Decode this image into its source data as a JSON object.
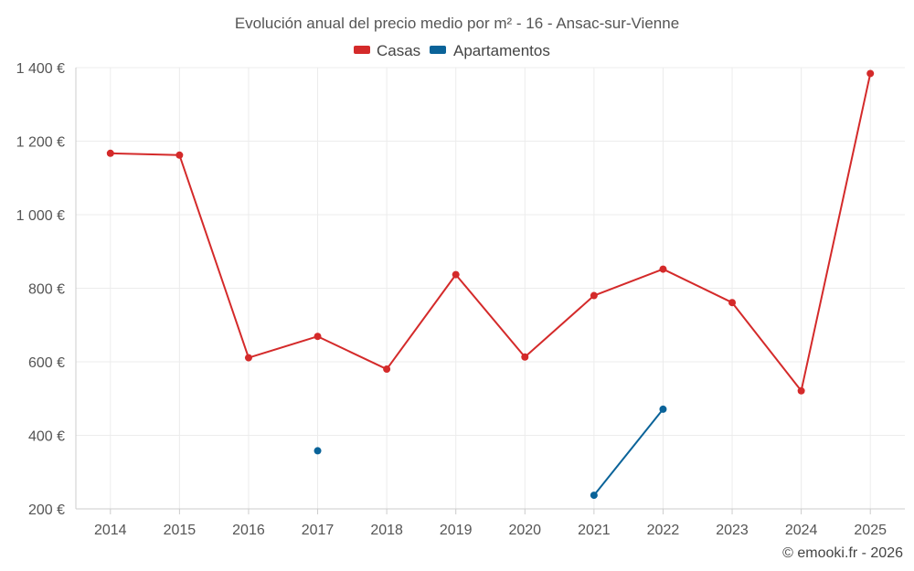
{
  "chart_data": {
    "type": "line",
    "title": "Evolución anual del precio medio por m² - 16 - Ansac-sur-Vienne",
    "categories": [
      "2014",
      "2015",
      "2016",
      "2017",
      "2018",
      "2019",
      "2020",
      "2021",
      "2022",
      "2023",
      "2024",
      "2025"
    ],
    "series": [
      {
        "name": "Casas",
        "color": "#d42a2a",
        "values": [
          1167,
          1162,
          611,
          669,
          580,
          837,
          613,
          780,
          852,
          761,
          521,
          1384
        ]
      },
      {
        "name": "Apartamentos",
        "color": "#0a6399",
        "values": [
          null,
          null,
          null,
          358,
          null,
          null,
          null,
          237,
          471,
          null,
          null,
          null
        ]
      }
    ],
    "ylim": [
      200,
      1400
    ],
    "yticks": [
      200,
      400,
      600,
      800,
      1000,
      1200,
      1400
    ],
    "ytick_labels": [
      "200 €",
      "400 €",
      "600 €",
      "800 €",
      "1 000 €",
      "1 200 €",
      "1 400 €"
    ],
    "grid": true,
    "legend": "top-center"
  },
  "credit": "© emooki.fr - 2026"
}
